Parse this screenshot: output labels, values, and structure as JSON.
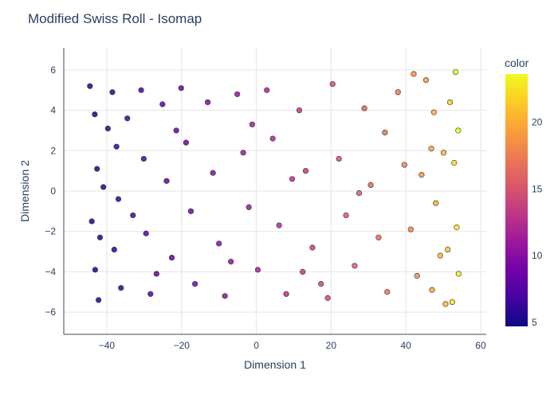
{
  "chart_data": {
    "type": "scatter",
    "title": "Modified Swiss Roll - Isomap",
    "xlabel": "Dimension 1",
    "ylabel": "Dimension 2",
    "xlim": [
      -51.5,
      61.5
    ],
    "ylim": [
      -7.1,
      7.1
    ],
    "xticks": [
      -40,
      -20,
      0,
      20,
      40,
      60
    ],
    "yticks": [
      -6,
      -4,
      -2,
      0,
      2,
      4,
      6
    ],
    "grid": true,
    "colorbar": {
      "title": "color",
      "range": [
        4.71,
        23.6
      ],
      "ticks": [
        5,
        10,
        15,
        20
      ],
      "colorscale": [
        "#0d0887",
        "#46039f",
        "#7201a8",
        "#9c179e",
        "#bd3786",
        "#d8576b",
        "#ed7953",
        "#fb9f3a",
        "#fdca26",
        "#f0f921"
      ]
    },
    "marker_style": {
      "outline": "#333333",
      "opacity": 0.85
    },
    "points": [
      [
        -44.5,
        5.2,
        4.9
      ],
      [
        -43.2,
        3.8,
        5.1
      ],
      [
        -42.6,
        1.1,
        5.2
      ],
      [
        -44.0,
        -1.5,
        5.0
      ],
      [
        -43.1,
        -3.9,
        5.1
      ],
      [
        -42.2,
        -5.4,
        5.3
      ],
      [
        -38.5,
        4.9,
        5.8
      ],
      [
        -37.4,
        2.2,
        6.0
      ],
      [
        -36.9,
        -0.4,
        6.1
      ],
      [
        -38.0,
        -2.9,
        5.9
      ],
      [
        -36.2,
        -4.8,
        6.2
      ],
      [
        -34.5,
        3.6,
        6.5
      ],
      [
        -30.8,
        5.0,
        7.0
      ],
      [
        -30.1,
        1.6,
        7.1
      ],
      [
        -29.5,
        -2.1,
        7.2
      ],
      [
        -28.3,
        -5.1,
        7.4
      ],
      [
        -25.1,
        4.3,
        7.8
      ],
      [
        -24.0,
        0.5,
        8.0
      ],
      [
        -22.6,
        -3.3,
        8.2
      ],
      [
        -20.1,
        5.1,
        8.6
      ],
      [
        -18.8,
        2.4,
        8.8
      ],
      [
        -17.5,
        -1.0,
        9.0
      ],
      [
        -16.4,
        -4.6,
        9.1
      ],
      [
        -13.0,
        4.4,
        9.6
      ],
      [
        -11.6,
        0.9,
        9.8
      ],
      [
        -10.0,
        -2.6,
        10.0
      ],
      [
        -8.4,
        -5.2,
        10.3
      ],
      [
        -5.1,
        4.8,
        10.7
      ],
      [
        -3.5,
        1.9,
        10.9
      ],
      [
        -2.0,
        -0.8,
        11.1
      ],
      [
        0.4,
        -3.9,
        11.4
      ],
      [
        2.8,
        5.0,
        11.8
      ],
      [
        4.4,
        2.6,
        12.0
      ],
      [
        6.1,
        -1.7,
        12.3
      ],
      [
        8.0,
        -5.1,
        12.6
      ],
      [
        11.5,
        4.0,
        13.1
      ],
      [
        13.2,
        1.0,
        13.4
      ],
      [
        15.0,
        -2.8,
        13.7
      ],
      [
        17.3,
        -4.6,
        14.0
      ],
      [
        20.4,
        5.3,
        14.5
      ],
      [
        22.1,
        1.6,
        14.8
      ],
      [
        24.0,
        -1.2,
        15.1
      ],
      [
        26.3,
        -3.7,
        15.4
      ],
      [
        28.9,
        4.1,
        15.9
      ],
      [
        30.6,
        0.3,
        16.2
      ],
      [
        32.7,
        -2.3,
        16.5
      ],
      [
        35.0,
        -5.0,
        16.9
      ],
      [
        37.9,
        4.9,
        17.4
      ],
      [
        39.6,
        1.3,
        17.8
      ],
      [
        41.3,
        -1.9,
        18.1
      ],
      [
        43.0,
        -4.2,
        18.5
      ],
      [
        45.4,
        5.5,
        19.1
      ],
      [
        46.8,
        2.1,
        19.5
      ],
      [
        48.0,
        -0.6,
        19.9
      ],
      [
        49.2,
        -3.2,
        20.4
      ],
      [
        50.6,
        -5.6,
        20.9
      ],
      [
        51.8,
        4.4,
        21.6
      ],
      [
        52.9,
        1.4,
        22.1
      ],
      [
        53.6,
        -1.8,
        22.6
      ],
      [
        54.1,
        -4.1,
        23.0
      ],
      [
        53.3,
        5.9,
        23.3
      ],
      [
        54.0,
        3.0,
        23.5
      ],
      [
        52.4,
        -5.5,
        22.8
      ],
      [
        -40.9,
        0.2,
        5.5
      ],
      [
        -33.0,
        -1.2,
        6.7
      ],
      [
        -21.4,
        3.0,
        8.4
      ],
      [
        -6.8,
        -3.5,
        10.5
      ],
      [
        9.6,
        0.6,
        12.9
      ],
      [
        19.1,
        -5.3,
        14.3
      ],
      [
        34.4,
        2.9,
        16.8
      ],
      [
        44.2,
        0.8,
        18.8
      ],
      [
        47.5,
        3.9,
        19.7
      ],
      [
        50.1,
        1.9,
        20.6
      ],
      [
        51.2,
        -2.9,
        21.2
      ],
      [
        47.0,
        -4.9,
        19.6
      ],
      [
        42.1,
        5.8,
        18.3
      ],
      [
        27.5,
        -0.1,
        15.6
      ],
      [
        12.4,
        -4.0,
        13.2
      ],
      [
        -1.1,
        3.3,
        11.2
      ],
      [
        -26.7,
        -4.1,
        7.6
      ],
      [
        -41.8,
        -2.3,
        5.4
      ],
      [
        -39.7,
        3.1,
        5.7
      ]
    ]
  }
}
